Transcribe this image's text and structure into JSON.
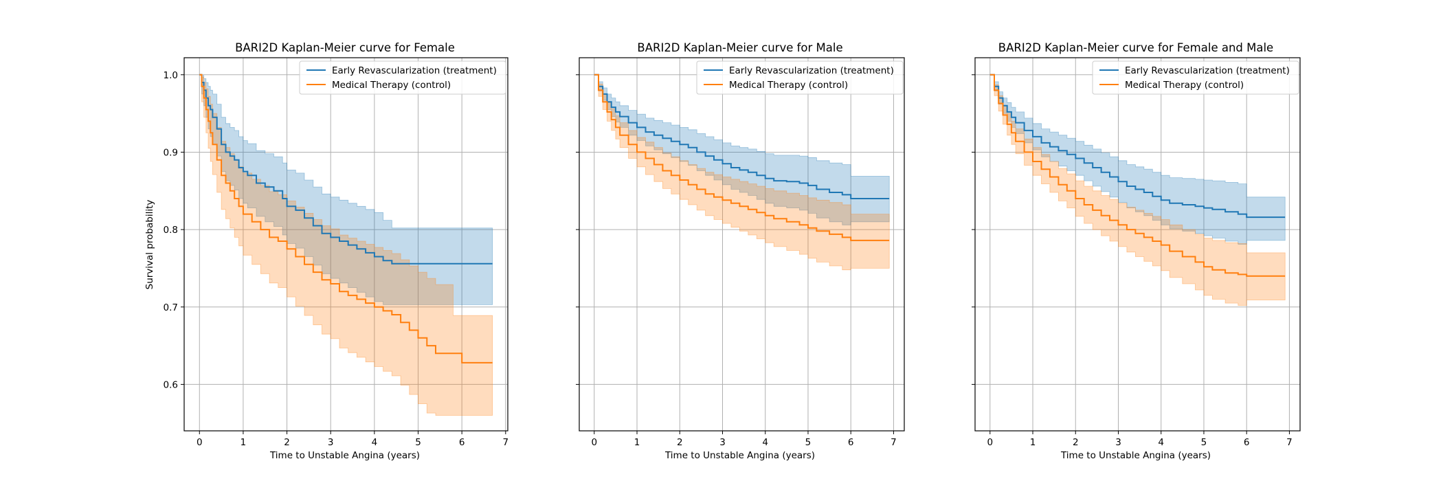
{
  "colors": {
    "treatment": "#1f77b4",
    "control": "#ff7f0e",
    "grid": "#b0b0b0",
    "axis": "#000000",
    "background": "#ffffff"
  },
  "chart_data": [
    {
      "type": "line",
      "title": "BARI2D Kaplan-Meier curve for Female",
      "xlabel": "Time to Unstable Angina (years)",
      "ylabel": "Survival probability",
      "xlim": [
        -0.35,
        7.05
      ],
      "ylim": [
        0.54,
        1.022
      ],
      "x_ticks": [
        0,
        1,
        2,
        3,
        4,
        5,
        6,
        7
      ],
      "y_ticks": [
        0.6,
        0.7,
        0.8,
        0.9,
        1.0
      ],
      "y_tick_labels": [
        "0.6",
        "0.7",
        "0.8",
        "0.9",
        "1.0"
      ],
      "grid": true,
      "legend_position": "upper right",
      "series": [
        {
          "name": "Early Revascularization (treatment)",
          "color": "#1f77b4",
          "x": [
            0,
            0.05,
            0.1,
            0.15,
            0.2,
            0.25,
            0.3,
            0.4,
            0.5,
            0.6,
            0.7,
            0.8,
            0.9,
            1.0,
            1.1,
            1.3,
            1.5,
            1.7,
            1.9,
            2.0,
            2.2,
            2.4,
            2.6,
            2.8,
            3.0,
            3.2,
            3.4,
            3.6,
            3.8,
            4.0,
            4.2,
            4.4,
            6.7
          ],
          "y": [
            1.0,
            0.99,
            0.98,
            0.97,
            0.96,
            0.955,
            0.945,
            0.93,
            0.91,
            0.9,
            0.895,
            0.89,
            0.88,
            0.875,
            0.87,
            0.86,
            0.855,
            0.85,
            0.84,
            0.83,
            0.825,
            0.815,
            0.805,
            0.795,
            0.79,
            0.785,
            0.78,
            0.775,
            0.77,
            0.765,
            0.76,
            0.756,
            0.756
          ],
          "ci_lower": [
            1.0,
            0.975,
            0.96,
            0.945,
            0.93,
            0.92,
            0.91,
            0.895,
            0.875,
            0.863,
            0.857,
            0.851,
            0.84,
            0.834,
            0.828,
            0.817,
            0.81,
            0.804,
            0.793,
            0.782,
            0.776,
            0.765,
            0.754,
            0.743,
            0.737,
            0.731,
            0.725,
            0.719,
            0.713,
            0.707,
            0.703,
            0.703,
            0.703
          ],
          "ci_upper": [
            1.0,
            0.999,
            0.995,
            0.99,
            0.985,
            0.98,
            0.975,
            0.962,
            0.945,
            0.937,
            0.932,
            0.928,
            0.92,
            0.915,
            0.911,
            0.902,
            0.898,
            0.894,
            0.886,
            0.877,
            0.873,
            0.864,
            0.855,
            0.846,
            0.842,
            0.838,
            0.834,
            0.83,
            0.826,
            0.822,
            0.812,
            0.802,
            0.802
          ]
        },
        {
          "name": "Medical Therapy (control)",
          "color": "#ff7f0e",
          "x": [
            0,
            0.05,
            0.1,
            0.15,
            0.2,
            0.25,
            0.3,
            0.4,
            0.5,
            0.6,
            0.7,
            0.8,
            0.9,
            1.0,
            1.2,
            1.4,
            1.6,
            1.8,
            2.0,
            2.2,
            2.4,
            2.6,
            2.8,
            3.0,
            3.2,
            3.4,
            3.6,
            3.8,
            4.0,
            4.2,
            4.4,
            4.6,
            4.8,
            5.0,
            5.2,
            5.4,
            5.8,
            6.0,
            6.7
          ],
          "y": [
            1.0,
            0.985,
            0.97,
            0.955,
            0.94,
            0.925,
            0.91,
            0.89,
            0.87,
            0.86,
            0.85,
            0.84,
            0.83,
            0.82,
            0.81,
            0.8,
            0.79,
            0.785,
            0.775,
            0.765,
            0.755,
            0.745,
            0.735,
            0.73,
            0.72,
            0.715,
            0.71,
            0.705,
            0.7,
            0.695,
            0.69,
            0.68,
            0.67,
            0.66,
            0.65,
            0.64,
            0.64,
            0.628,
            0.628
          ],
          "ci_lower": [
            1.0,
            0.965,
            0.945,
            0.925,
            0.905,
            0.888,
            0.871,
            0.848,
            0.826,
            0.814,
            0.802,
            0.79,
            0.779,
            0.767,
            0.755,
            0.743,
            0.731,
            0.725,
            0.713,
            0.701,
            0.689,
            0.677,
            0.665,
            0.659,
            0.647,
            0.641,
            0.635,
            0.629,
            0.623,
            0.617,
            0.611,
            0.599,
            0.587,
            0.575,
            0.563,
            0.56,
            0.56,
            0.56,
            0.56
          ],
          "ci_upper": [
            1.0,
            0.997,
            0.99,
            0.982,
            0.972,
            0.962,
            0.95,
            0.932,
            0.914,
            0.906,
            0.898,
            0.89,
            0.881,
            0.873,
            0.865,
            0.857,
            0.849,
            0.845,
            0.837,
            0.829,
            0.821,
            0.813,
            0.805,
            0.801,
            0.793,
            0.789,
            0.785,
            0.781,
            0.777,
            0.773,
            0.769,
            0.761,
            0.753,
            0.745,
            0.737,
            0.729,
            0.689,
            0.689,
            0.689
          ]
        }
      ]
    },
    {
      "type": "line",
      "title": "BARI2D Kaplan-Meier curve for Male",
      "xlabel": "Time to Unstable Angina (years)",
      "ylabel": "",
      "xlim": [
        -0.35,
        7.25
      ],
      "ylim": [
        0.54,
        1.022
      ],
      "x_ticks": [
        0,
        1,
        2,
        3,
        4,
        5,
        6,
        7
      ],
      "y_ticks": [
        0.6,
        0.7,
        0.8,
        0.9,
        1.0
      ],
      "y_tick_labels": [],
      "grid": true,
      "legend_position": "upper right",
      "series": [
        {
          "name": "Early Revascularization (treatment)",
          "color": "#1f77b4",
          "x": [
            0,
            0.1,
            0.2,
            0.3,
            0.4,
            0.5,
            0.6,
            0.8,
            1.0,
            1.2,
            1.4,
            1.6,
            1.8,
            2.0,
            2.2,
            2.4,
            2.6,
            2.8,
            3.0,
            3.2,
            3.4,
            3.6,
            3.8,
            4.0,
            4.2,
            4.5,
            4.8,
            5.0,
            5.2,
            5.5,
            5.8,
            6.0,
            6.9
          ],
          "y": [
            1.0,
            0.985,
            0.975,
            0.965,
            0.958,
            0.952,
            0.946,
            0.938,
            0.932,
            0.926,
            0.922,
            0.918,
            0.914,
            0.91,
            0.906,
            0.9,
            0.895,
            0.89,
            0.885,
            0.88,
            0.877,
            0.874,
            0.87,
            0.866,
            0.863,
            0.862,
            0.86,
            0.857,
            0.852,
            0.848,
            0.845,
            0.84,
            0.84
          ],
          "ci_lower": [
            1.0,
            0.979,
            0.967,
            0.955,
            0.946,
            0.939,
            0.932,
            0.922,
            0.915,
            0.908,
            0.903,
            0.898,
            0.893,
            0.888,
            0.883,
            0.876,
            0.87,
            0.864,
            0.858,
            0.852,
            0.848,
            0.844,
            0.839,
            0.834,
            0.83,
            0.828,
            0.825,
            0.821,
            0.815,
            0.81,
            0.806,
            0.81,
            0.81
          ],
          "ci_upper": [
            1.0,
            0.991,
            0.983,
            0.975,
            0.97,
            0.965,
            0.96,
            0.954,
            0.949,
            0.944,
            0.941,
            0.938,
            0.935,
            0.932,
            0.929,
            0.924,
            0.92,
            0.916,
            0.912,
            0.908,
            0.906,
            0.904,
            0.901,
            0.898,
            0.896,
            0.896,
            0.895,
            0.893,
            0.889,
            0.886,
            0.884,
            0.869,
            0.869
          ]
        },
        {
          "name": "Medical Therapy (control)",
          "color": "#ff7f0e",
          "x": [
            0,
            0.1,
            0.2,
            0.3,
            0.4,
            0.5,
            0.6,
            0.8,
            1.0,
            1.2,
            1.4,
            1.6,
            1.8,
            2.0,
            2.2,
            2.4,
            2.6,
            2.8,
            3.0,
            3.2,
            3.4,
            3.6,
            3.8,
            4.0,
            4.2,
            4.5,
            4.8,
            5.0,
            5.2,
            5.5,
            5.8,
            6.0,
            6.9
          ],
          "y": [
            1.0,
            0.98,
            0.965,
            0.952,
            0.942,
            0.932,
            0.922,
            0.91,
            0.9,
            0.892,
            0.884,
            0.876,
            0.87,
            0.864,
            0.858,
            0.852,
            0.846,
            0.842,
            0.838,
            0.834,
            0.83,
            0.826,
            0.822,
            0.818,
            0.814,
            0.81,
            0.806,
            0.802,
            0.798,
            0.794,
            0.79,
            0.786,
            0.786
          ],
          "ci_lower": [
            1.0,
            0.972,
            0.955,
            0.94,
            0.928,
            0.917,
            0.906,
            0.892,
            0.881,
            0.871,
            0.862,
            0.853,
            0.846,
            0.839,
            0.832,
            0.825,
            0.818,
            0.813,
            0.808,
            0.803,
            0.798,
            0.793,
            0.788,
            0.783,
            0.778,
            0.773,
            0.768,
            0.763,
            0.758,
            0.753,
            0.748,
            0.75,
            0.75
          ],
          "ci_upper": [
            1.0,
            0.988,
            0.975,
            0.964,
            0.956,
            0.947,
            0.938,
            0.928,
            0.919,
            0.913,
            0.906,
            0.899,
            0.894,
            0.889,
            0.884,
            0.879,
            0.874,
            0.871,
            0.868,
            0.865,
            0.862,
            0.859,
            0.856,
            0.853,
            0.85,
            0.847,
            0.844,
            0.841,
            0.838,
            0.835,
            0.832,
            0.82,
            0.82
          ]
        }
      ]
    },
    {
      "type": "line",
      "title": "BARI2D Kaplan-Meier curve for Female and Male",
      "xlabel": "Time to Unstable Angina (years)",
      "ylabel": "",
      "xlim": [
        -0.35,
        7.25
      ],
      "ylim": [
        0.54,
        1.022
      ],
      "x_ticks": [
        0,
        1,
        2,
        3,
        4,
        5,
        6,
        7
      ],
      "y_ticks": [
        0.6,
        0.7,
        0.8,
        0.9,
        1.0
      ],
      "y_tick_labels": [],
      "grid": true,
      "legend_position": "upper right",
      "series": [
        {
          "name": "Early Revascularization (treatment)",
          "color": "#1f77b4",
          "x": [
            0,
            0.1,
            0.2,
            0.3,
            0.4,
            0.5,
            0.6,
            0.8,
            1.0,
            1.2,
            1.4,
            1.6,
            1.8,
            2.0,
            2.2,
            2.4,
            2.6,
            2.8,
            3.0,
            3.2,
            3.4,
            3.6,
            3.8,
            4.0,
            4.2,
            4.5,
            4.8,
            5.0,
            5.2,
            5.5,
            5.8,
            6.0,
            6.9
          ],
          "y": [
            1.0,
            0.985,
            0.97,
            0.96,
            0.952,
            0.945,
            0.938,
            0.928,
            0.92,
            0.912,
            0.907,
            0.902,
            0.897,
            0.892,
            0.886,
            0.88,
            0.874,
            0.868,
            0.862,
            0.856,
            0.852,
            0.848,
            0.843,
            0.838,
            0.834,
            0.832,
            0.83,
            0.828,
            0.826,
            0.823,
            0.82,
            0.816,
            0.816
          ],
          "ci_lower": [
            1.0,
            0.979,
            0.962,
            0.95,
            0.94,
            0.932,
            0.924,
            0.912,
            0.903,
            0.894,
            0.888,
            0.882,
            0.876,
            0.87,
            0.863,
            0.856,
            0.849,
            0.842,
            0.835,
            0.828,
            0.823,
            0.818,
            0.812,
            0.806,
            0.801,
            0.798,
            0.795,
            0.792,
            0.789,
            0.785,
            0.781,
            0.786,
            0.786
          ],
          "ci_upper": [
            1.0,
            0.991,
            0.978,
            0.97,
            0.964,
            0.958,
            0.952,
            0.944,
            0.937,
            0.93,
            0.926,
            0.922,
            0.918,
            0.914,
            0.909,
            0.904,
            0.899,
            0.894,
            0.889,
            0.884,
            0.881,
            0.878,
            0.874,
            0.87,
            0.867,
            0.866,
            0.865,
            0.864,
            0.863,
            0.861,
            0.859,
            0.842,
            0.842
          ]
        },
        {
          "name": "Medical Therapy (control)",
          "color": "#ff7f0e",
          "x": [
            0,
            0.1,
            0.2,
            0.3,
            0.4,
            0.5,
            0.6,
            0.8,
            1.0,
            1.2,
            1.4,
            1.6,
            1.8,
            2.0,
            2.2,
            2.4,
            2.6,
            2.8,
            3.0,
            3.2,
            3.4,
            3.6,
            3.8,
            4.0,
            4.2,
            4.5,
            4.8,
            5.0,
            5.2,
            5.5,
            5.8,
            6.0,
            6.9
          ],
          "y": [
            1.0,
            0.98,
            0.963,
            0.948,
            0.936,
            0.925,
            0.914,
            0.9,
            0.888,
            0.878,
            0.868,
            0.858,
            0.85,
            0.84,
            0.832,
            0.825,
            0.818,
            0.812,
            0.806,
            0.8,
            0.795,
            0.79,
            0.785,
            0.78,
            0.772,
            0.765,
            0.758,
            0.752,
            0.748,
            0.744,
            0.742,
            0.74,
            0.74
          ],
          "ci_lower": [
            1.0,
            0.973,
            0.953,
            0.936,
            0.922,
            0.91,
            0.898,
            0.883,
            0.87,
            0.859,
            0.848,
            0.837,
            0.828,
            0.817,
            0.808,
            0.8,
            0.792,
            0.785,
            0.778,
            0.771,
            0.765,
            0.759,
            0.753,
            0.747,
            0.738,
            0.73,
            0.722,
            0.715,
            0.71,
            0.705,
            0.702,
            0.709,
            0.709
          ],
          "ci_upper": [
            1.0,
            0.987,
            0.973,
            0.96,
            0.95,
            0.94,
            0.93,
            0.917,
            0.906,
            0.897,
            0.888,
            0.879,
            0.872,
            0.863,
            0.856,
            0.85,
            0.844,
            0.839,
            0.834,
            0.829,
            0.825,
            0.821,
            0.817,
            0.813,
            0.806,
            0.8,
            0.794,
            0.789,
            0.786,
            0.783,
            0.782,
            0.77,
            0.77
          ]
        }
      ]
    }
  ]
}
